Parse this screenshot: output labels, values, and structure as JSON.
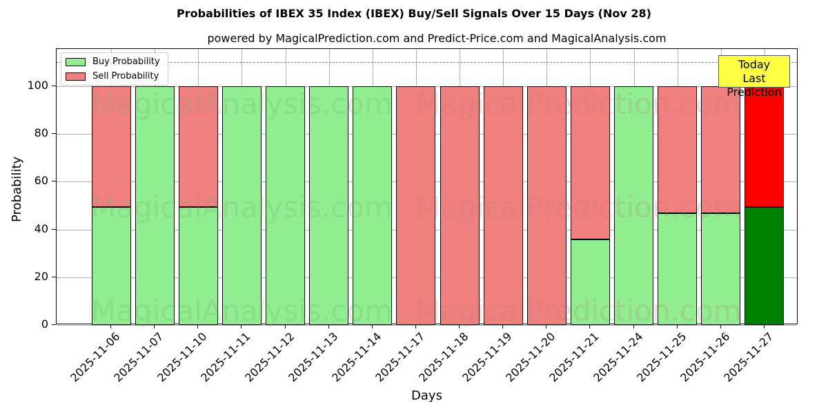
{
  "chart_data": {
    "type": "bar",
    "stacked": true,
    "title": "Probabilities of IBEX 35 Index (IBEX) Buy/Sell Signals Over 15 Days (Nov 28)",
    "subtitle": "powered by MagicalPrediction.com and Predict-Price.com and MagicalAnalysis.com",
    "xlabel": "Days",
    "ylabel": "Probability",
    "ylim": [
      0,
      115
    ],
    "yticks": [
      0,
      20,
      40,
      60,
      80,
      100
    ],
    "grid": true,
    "legend_position": "upper left",
    "reference_line": {
      "y": 110,
      "style": "dashed",
      "color": "#808080"
    },
    "categories": [
      "2025-11-06",
      "2025-11-07",
      "2025-11-10",
      "2025-11-11",
      "2025-11-12",
      "2025-11-13",
      "2025-11-14",
      "2025-11-17",
      "2025-11-18",
      "2025-11-19",
      "2025-11-20",
      "2025-11-21",
      "2025-11-24",
      "2025-11-25",
      "2025-11-26",
      "2025-11-27"
    ],
    "series": [
      {
        "name": "Buy Probability",
        "color": "#90ee90",
        "values": [
          49.4,
          100,
          49.4,
          100,
          100,
          100,
          100,
          0,
          0,
          0,
          0,
          35.8,
          100,
          46.7,
          46.7,
          49.3
        ]
      },
      {
        "name": "Sell Probability",
        "color": "#f08080",
        "values": [
          50.6,
          0,
          50.6,
          0,
          0,
          0,
          0,
          100,
          100,
          100,
          100,
          64.2,
          0,
          53.3,
          53.3,
          50.7
        ]
      }
    ],
    "highlight": {
      "category": "2025-11-27",
      "buy_color": "#008000",
      "sell_color": "#ff0000",
      "annotation": "Today\nLast Prediction"
    }
  },
  "labels": {
    "title": "Probabilities of IBEX 35 Index (IBEX) Buy/Sell Signals Over 15 Days (Nov 28)",
    "subtitle": "powered by MagicalPrediction.com and Predict-Price.com and MagicalAnalysis.com",
    "xlabel": "Days",
    "ylabel": "Probability",
    "legend_buy": "Buy Probability",
    "legend_sell": "Sell Probability",
    "today_line1": "Today",
    "today_line2": "Last Prediction",
    "watermark1": "MagicalAnalysis.com",
    "watermark2": "MagicalPrediction.com"
  }
}
